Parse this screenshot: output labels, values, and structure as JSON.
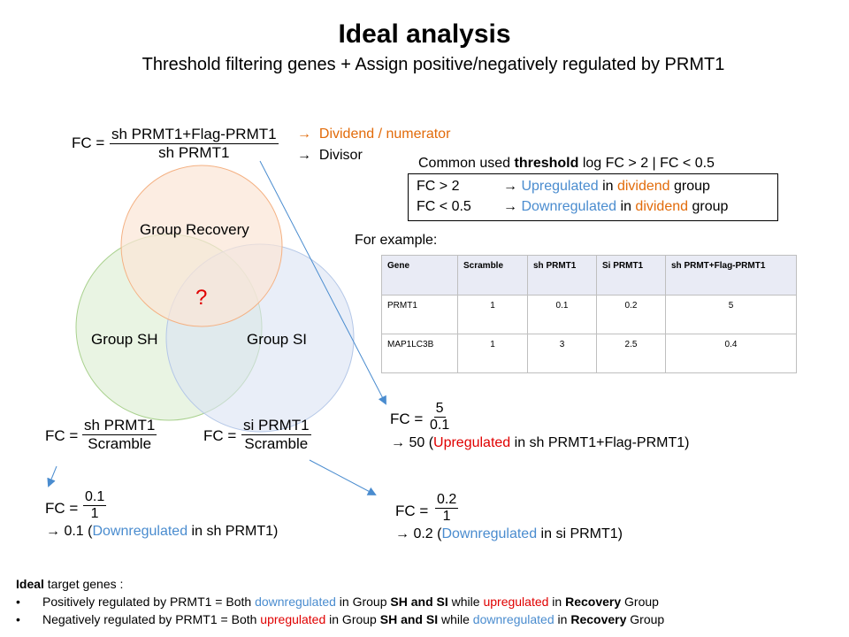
{
  "title": "Ideal analysis",
  "subtitle": "Threshold filtering genes + Assign positive/negatively regulated by PRMT1",
  "fc_label": "FC =",
  "top_formula": {
    "numerator": "sh PRMT1+Flag-PRMT1",
    "denominator": "sh PRMT1",
    "numerator_note": "Dividend / numerator",
    "denominator_note": "Divisor",
    "arrow": "→"
  },
  "venn": {
    "recovery": "Group Recovery",
    "sh": "Group SH",
    "si": "Group SI",
    "center": "?",
    "colors": {
      "recovery": "#fbe5d6",
      "sh": "#e2f0d9",
      "si": "#dae3f3"
    }
  },
  "threshold": {
    "heading_pre": "Common used ",
    "heading_bold": "threshold",
    "heading_post": " log FC > 2  |  FC < 0.5",
    "rows": [
      {
        "cond": "FC > 2",
        "arrow": "→",
        "reg": "Upregulated",
        "mid": " in ",
        "grp": "dividend",
        "end": " group"
      },
      {
        "cond": "FC < 0.5",
        "arrow": "→",
        "reg": "Downregulated",
        "mid": " in ",
        "grp": "dividend",
        "end": " group"
      }
    ]
  },
  "example": {
    "label": "For example:",
    "headers": [
      "Gene",
      "Scramble",
      "sh PRMT1",
      "Si PRMT1",
      "sh PRMT+Flag-PRMT1"
    ],
    "rows": [
      [
        "PRMT1",
        "1",
        "0.1",
        "0.2",
        "5"
      ],
      [
        "MAP1LC3B",
        "1",
        "3",
        "2.5",
        "0.4"
      ]
    ]
  },
  "fc_sh": {
    "numerator": "sh PRMT1",
    "denominator": "Scramble"
  },
  "fc_si": {
    "numerator": "si PRMT1",
    "denominator": "Scramble"
  },
  "calc_recovery": {
    "numerator": "5",
    "denominator": "0.1",
    "arrow": "→",
    "pre": " 50 (",
    "reg": "Upregulated",
    "post": " in sh PRMT1+Flag-PRMT1)"
  },
  "calc_sh": {
    "numerator": "0.1",
    "denominator": "1",
    "arrow": "→",
    "pre": " 0.1 (",
    "reg": "Downregulated",
    "post": " in sh PRMT1)"
  },
  "calc_si": {
    "numerator": "0.2",
    "denominator": "1",
    "arrow": "→",
    "pre": " 0.2 (",
    "reg": "Downregulated",
    "post": " in si PRMT1)"
  },
  "ideal": {
    "heading_bold": "Ideal",
    "heading_rest": " target genes :",
    "bullet": "•",
    "positive": {
      "a": "Positively  regulated  by PRMT1  = Both ",
      "b": "downregulated",
      "c": "  in Group  ",
      "d": "SH and SI",
      "e": " while ",
      "f": "upregulated",
      "g": "  in ",
      "h": "Recovery",
      "i": "  Group"
    },
    "negative": {
      "a": "Negatively  regulated  by PRMT1  = Both ",
      "b": "upregulated",
      "c": "  in Group  ",
      "d": "SH and SI",
      "e": " while ",
      "f": "downregulated",
      "g": "  in ",
      "h": "Recovery",
      "i": "  Group"
    }
  }
}
